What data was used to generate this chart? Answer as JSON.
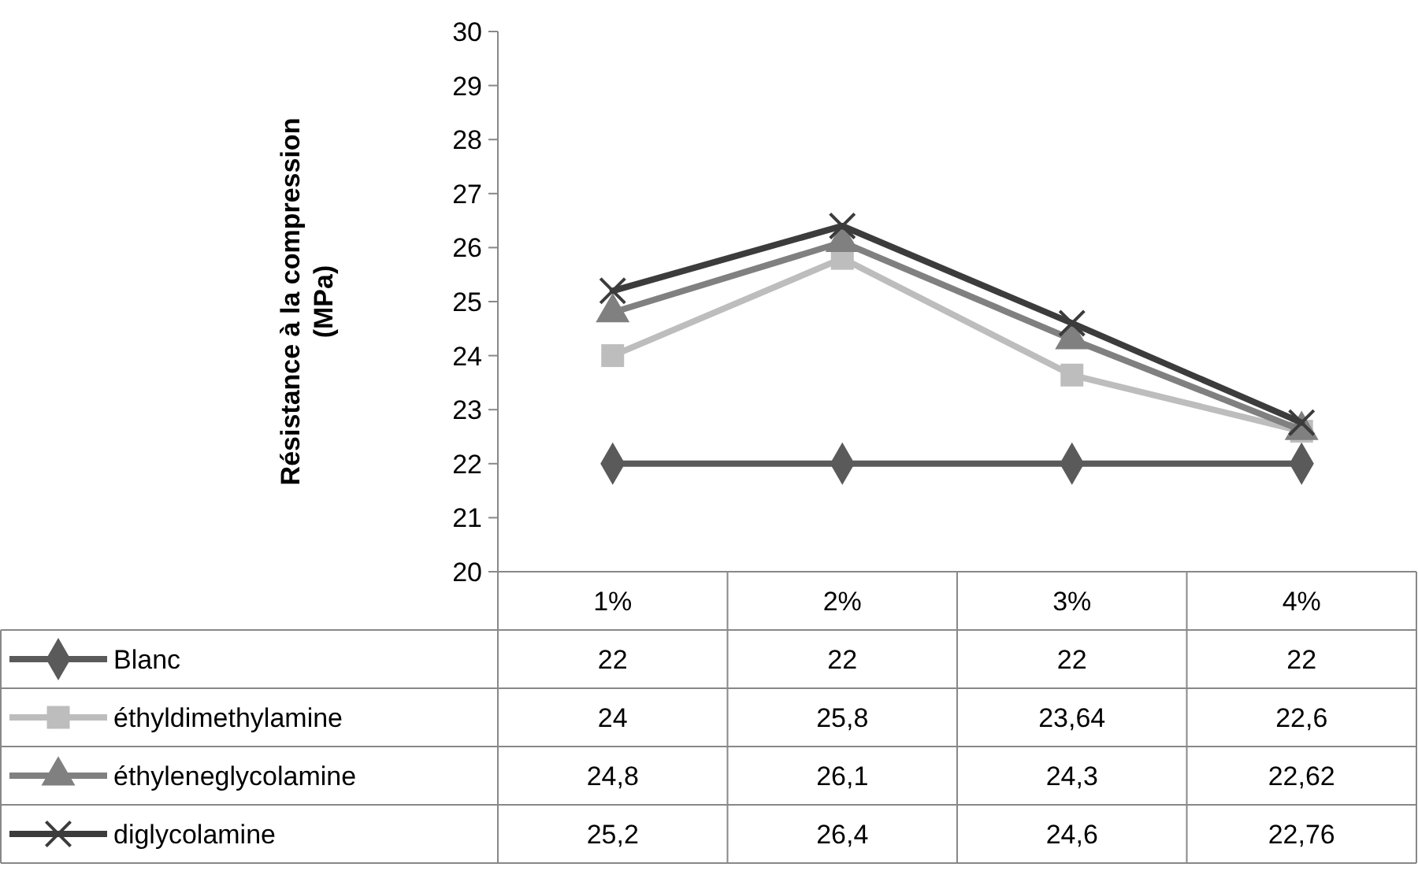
{
  "chart_data": {
    "type": "line",
    "ylabel": "Résistance  à la compression\n(MPa)",
    "categories": [
      "1%",
      "2%",
      "3%",
      "4%"
    ],
    "series": [
      {
        "name": "Blanc",
        "color": "#5a5a5a",
        "marker": "diamond",
        "values": [
          22,
          22,
          22,
          22
        ],
        "value_labels": [
          "22",
          "22",
          "22",
          "22"
        ]
      },
      {
        "name": "éthyldimethylamine",
        "color": "#bdbdbd",
        "marker": "square",
        "values": [
          24,
          25.8,
          23.64,
          22.6
        ],
        "value_labels": [
          "24",
          "25,8",
          "23,64",
          "22,6"
        ]
      },
      {
        "name": "éthyleneglycolamine",
        "color": "#808080",
        "marker": "triangle",
        "values": [
          24.8,
          26.1,
          24.3,
          22.62
        ],
        "value_labels": [
          "24,8",
          "26,1",
          "24,3",
          "22,62"
        ]
      },
      {
        "name": "diglycolamine",
        "color": "#3c3c3c",
        "marker": "cross",
        "values": [
          25.2,
          26.4,
          24.6,
          22.76
        ],
        "value_labels": [
          "25,2",
          "26,4",
          "24,6",
          "22,76"
        ]
      }
    ],
    "ylim": [
      20,
      30
    ],
    "yticks": [
      20,
      21,
      22,
      23,
      24,
      25,
      26,
      27,
      28,
      29,
      30
    ],
    "grid": false,
    "legend": "bottom",
    "line_style": "solid"
  }
}
